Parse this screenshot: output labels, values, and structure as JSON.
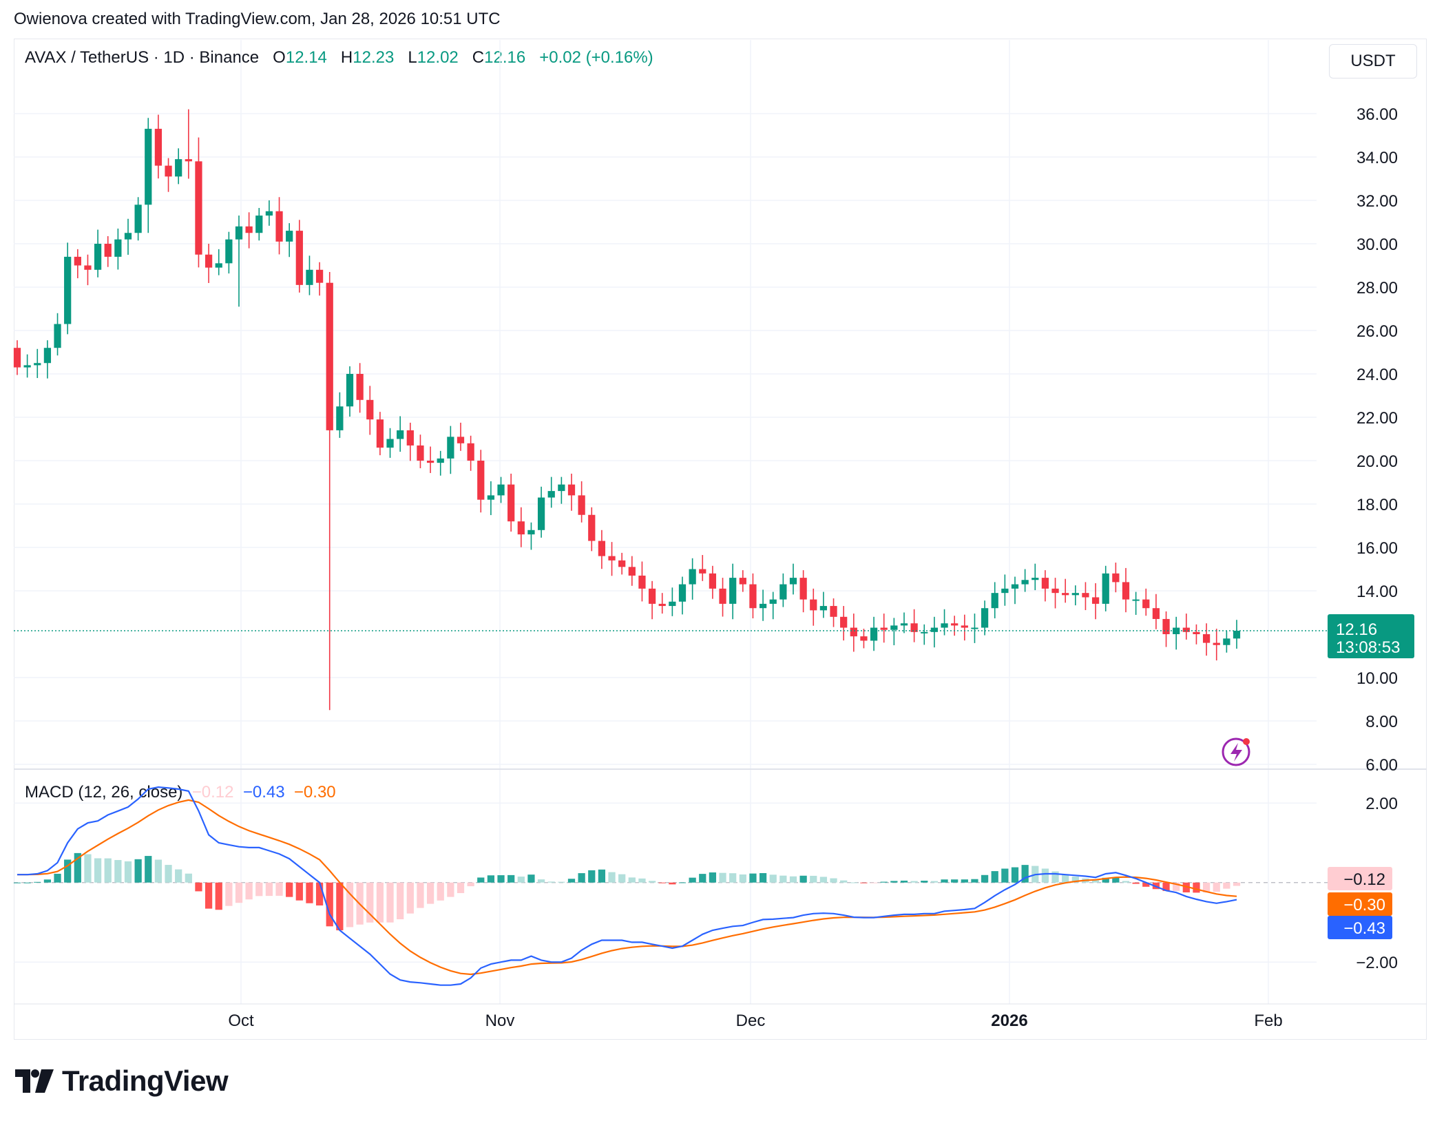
{
  "header": {
    "text": "Owienova created with TradingView.com, Jan 28, 2026 10:51 UTC"
  },
  "legend": {
    "symbol": "AVAX / TetherUS · 1D · Binance",
    "o_label": "O",
    "o_value": "12.14",
    "h_label": "H",
    "h_value": "12.23",
    "l_label": "L",
    "l_value": "12.02",
    "c_label": "C",
    "c_value": "12.16",
    "change": "+0.02 (+0.16%)"
  },
  "currency_button": "USDT",
  "macd_legend": {
    "name": "MACD (12, 26, close)",
    "hist": "−0.12",
    "macd": "−0.43",
    "signal": "−0.30"
  },
  "colors": {
    "up": "#089981",
    "down": "#F23645",
    "macd_line": "#2962FF",
    "signal_line": "#FF6D00",
    "hist_up_strong": "#26A69A",
    "hist_up_weak": "#B2DFDB",
    "hist_down_strong": "#FF5252",
    "hist_down_weak": "#FFCDD2"
  },
  "footer": {
    "brand": "TradingView"
  },
  "icons": {
    "footer_logo": "tradingview-logo-icon",
    "alert": "lightning-alert-icon"
  },
  "chart_data": [
    {
      "type": "candlestick",
      "title": "AVAX / TetherUS · 1D · Binance",
      "ylim": [
        6,
        36
      ],
      "y_ticks": [
        "36.00",
        "34.00",
        "32.00",
        "30.00",
        "28.00",
        "26.00",
        "24.00",
        "22.00",
        "20.00",
        "18.00",
        "16.00",
        "14.00",
        "10.00",
        "8.00",
        "6.00"
      ],
      "x_ticks": [
        "Oct",
        "Nov",
        "Dec",
        "2026",
        "Feb"
      ],
      "last_price_label": "12.16",
      "countdown_label": "13:08:53",
      "closes_approx": [
        24.3,
        24.4,
        24.5,
        25.2,
        26.3,
        29.4,
        29.0,
        28.8,
        30.0,
        29.4,
        30.2,
        30.5,
        31.8,
        35.3,
        33.6,
        33.1,
        33.9,
        33.8,
        29.5,
        28.9,
        29.1,
        30.2,
        30.8,
        30.5,
        31.3,
        31.5,
        30.1,
        30.6,
        28.1,
        28.8,
        28.2,
        21.4,
        22.5,
        24.0,
        22.8,
        21.9,
        20.6,
        21.0,
        21.4,
        20.7,
        20.0,
        19.9,
        20.1,
        21.1,
        20.8,
        20.0,
        18.2,
        18.4,
        18.9,
        17.2,
        16.6,
        16.8,
        18.3,
        18.6,
        18.9,
        18.4,
        17.5,
        16.3,
        15.6,
        15.4,
        15.1,
        14.7,
        14.1,
        13.4,
        13.3,
        13.5,
        14.3,
        15.0,
        14.8,
        14.1,
        13.4,
        14.6,
        14.3,
        13.2,
        13.4,
        13.6,
        14.3,
        14.6,
        13.6,
        13.1,
        13.3,
        12.8,
        12.3,
        11.9,
        11.7,
        12.3,
        12.2,
        12.4,
        12.5,
        12.1,
        12.1,
        12.3,
        12.5,
        12.4,
        12.3,
        12.3,
        13.2,
        13.9,
        14.1,
        14.3,
        14.5,
        14.6,
        14.1,
        13.9,
        13.8,
        13.9,
        13.7,
        13.4,
        14.8,
        14.4,
        13.6,
        13.6,
        13.2,
        12.7,
        12.0,
        12.3,
        12.1,
        12.0,
        11.6,
        11.5,
        11.8,
        12.16
      ]
    },
    {
      "type": "macd",
      "name": "MACD (12, 26, close)",
      "ylim": [
        -3.0,
        2.8
      ],
      "y_ticks": [
        "2.00",
        "−2.00"
      ],
      "value_labels": {
        "hist": "−0.12",
        "signal": "−0.30",
        "macd": "−0.43"
      },
      "macd_approx": [
        0.2,
        0.2,
        0.22,
        0.3,
        0.5,
        1.0,
        1.35,
        1.5,
        1.55,
        1.7,
        1.8,
        1.9,
        2.1,
        2.35,
        2.4,
        2.38,
        2.35,
        2.3,
        1.8,
        1.2,
        1.0,
        0.95,
        0.9,
        0.88,
        0.88,
        0.8,
        0.72,
        0.6,
        0.4,
        0.2,
        0.0,
        -0.8,
        -1.2,
        -1.4,
        -1.6,
        -1.8,
        -2.05,
        -2.3,
        -2.45,
        -2.5,
        -2.52,
        -2.55,
        -2.58,
        -2.58,
        -2.55,
        -2.4,
        -2.15,
        -2.05,
        -2.0,
        -1.95,
        -1.95,
        -1.85,
        -1.95,
        -2.0,
        -2.0,
        -1.9,
        -1.7,
        -1.55,
        -1.45,
        -1.45,
        -1.45,
        -1.5,
        -1.5,
        -1.55,
        -1.6,
        -1.65,
        -1.6,
        -1.45,
        -1.3,
        -1.2,
        -1.15,
        -1.1,
        -1.08,
        -1.0,
        -0.93,
        -0.92,
        -0.9,
        -0.88,
        -0.82,
        -0.78,
        -0.77,
        -0.78,
        -0.82,
        -0.87,
        -0.88,
        -0.88,
        -0.85,
        -0.82,
        -0.8,
        -0.8,
        -0.78,
        -0.78,
        -0.72,
        -0.7,
        -0.68,
        -0.65,
        -0.5,
        -0.33,
        -0.18,
        -0.05,
        0.12,
        0.2,
        0.22,
        0.22,
        0.2,
        0.18,
        0.16,
        0.13,
        0.22,
        0.25,
        0.18,
        0.1,
        0.0,
        -0.1,
        -0.2,
        -0.25,
        -0.35,
        -0.42,
        -0.48,
        -0.52,
        -0.48,
        -0.43
      ]
    }
  ]
}
